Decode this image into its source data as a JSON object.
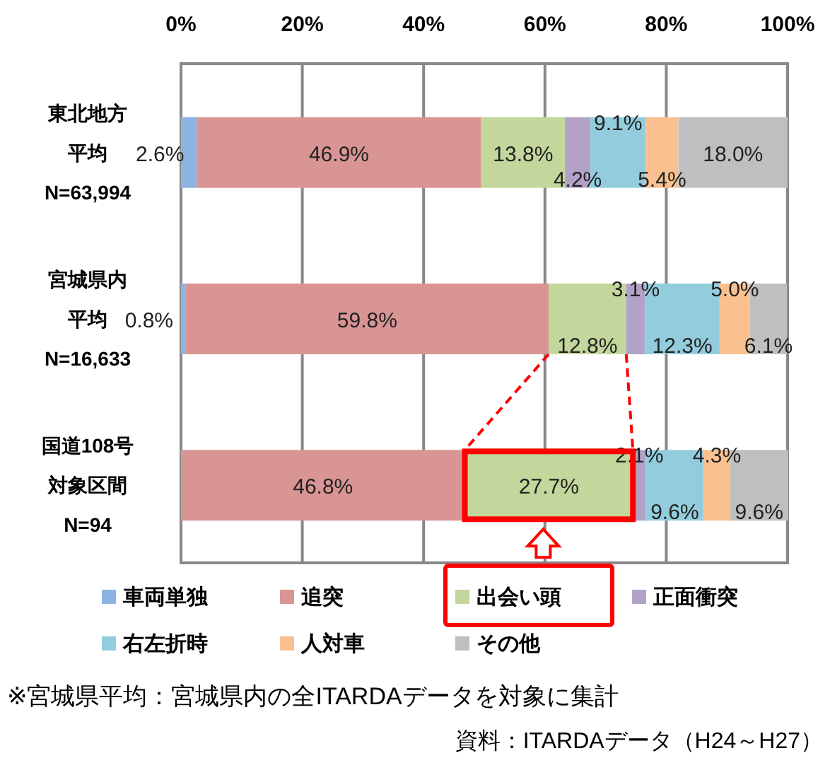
{
  "chart_data": {
    "type": "bar",
    "orientation": "horizontal",
    "stacked": true,
    "categories": [
      "東北地方平均N=63,994",
      "宮城県内平均N=16,633",
      "国道108号対象区間N=94"
    ],
    "series": [
      {
        "name": "車両単独",
        "color": "#8eb4e3",
        "values": [
          2.6,
          0.8,
          0
        ],
        "value_labels": [
          "2.6%",
          "0.8%",
          null
        ]
      },
      {
        "name": "追突",
        "color": "#d99594",
        "values": [
          46.9,
          59.8,
          46.8
        ],
        "value_labels": [
          "46.9%",
          "59.8%",
          "46.8%"
        ]
      },
      {
        "name": "出会い頭",
        "color": "#c3d69b",
        "values": [
          13.8,
          12.8,
          27.7
        ],
        "value_labels": [
          "13.8%",
          "12.8%",
          "27.7%"
        ]
      },
      {
        "name": "正面衝突",
        "color": "#b3a2c7",
        "values": [
          4.2,
          3.1,
          2.1
        ],
        "value_labels": [
          "4.2%",
          "3.1%",
          "2.1%"
        ]
      },
      {
        "name": "右左折時",
        "color": "#93cddd",
        "values": [
          9.1,
          12.3,
          9.6
        ],
        "value_labels": [
          "9.1%",
          "12.3%",
          "9.6%"
        ]
      },
      {
        "name": "人対車",
        "color": "#fac090",
        "values": [
          5.4,
          5.0,
          4.3
        ],
        "value_labels": [
          "5.4%",
          "5.0%",
          "4.3%"
        ]
      },
      {
        "name": "その他",
        "color": "#bfbfbf",
        "values": [
          18.0,
          6.1,
          9.6
        ],
        "value_labels": [
          "18.0%",
          "6.1%",
          "9.6%"
        ]
      }
    ],
    "xlim": [
      0,
      100
    ],
    "xticks": [
      {
        "value": 0,
        "label": "0%"
      },
      {
        "value": 20,
        "label": "20%"
      },
      {
        "value": 40,
        "label": "40%"
      },
      {
        "value": 60,
        "label": "60%"
      },
      {
        "value": 80,
        "label": "80%"
      },
      {
        "value": 100,
        "label": "100%"
      }
    ],
    "grid": "x",
    "legend": "bottom",
    "annotations": [
      "※宮城県平均：宮城県内の全ITARDAデータを対象に集計",
      "資料：ITARDAデータ（H24～H27）"
    ]
  }
}
